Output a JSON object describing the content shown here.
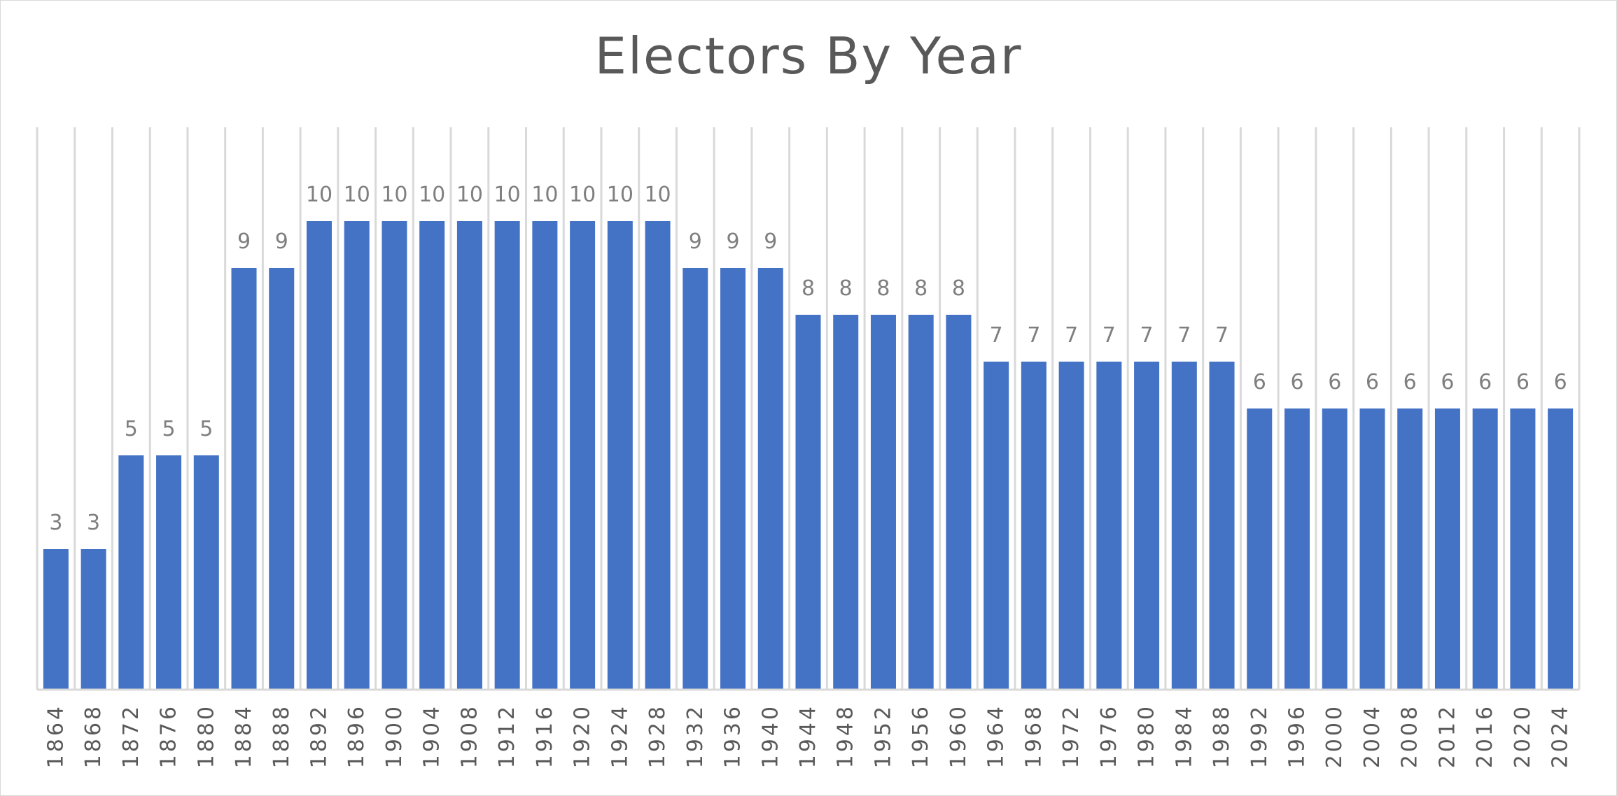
{
  "chart_data": {
    "type": "bar",
    "title": "Electors By Year",
    "xlabel": "",
    "ylabel": "",
    "ylim": [
      0,
      12
    ],
    "grid": "vertical",
    "legend": "none",
    "bar_color": "#4472c4",
    "categories": [
      "1864",
      "1868",
      "1872",
      "1876",
      "1880",
      "1884",
      "1888",
      "1892",
      "1896",
      "1900",
      "1904",
      "1908",
      "1912",
      "1916",
      "1920",
      "1924",
      "1928",
      "1932",
      "1936",
      "1940",
      "1944",
      "1948",
      "1952",
      "1956",
      "1960",
      "1964",
      "1968",
      "1972",
      "1976",
      "1980",
      "1984",
      "1988",
      "1992",
      "1996",
      "2000",
      "2004",
      "2008",
      "2012",
      "2016",
      "2020",
      "2024"
    ],
    "values": [
      3,
      3,
      5,
      5,
      5,
      9,
      9,
      10,
      10,
      10,
      10,
      10,
      10,
      10,
      10,
      10,
      10,
      9,
      9,
      9,
      8,
      8,
      8,
      8,
      8,
      7,
      7,
      7,
      7,
      7,
      7,
      7,
      6,
      6,
      6,
      6,
      6,
      6,
      6,
      6,
      6
    ]
  }
}
